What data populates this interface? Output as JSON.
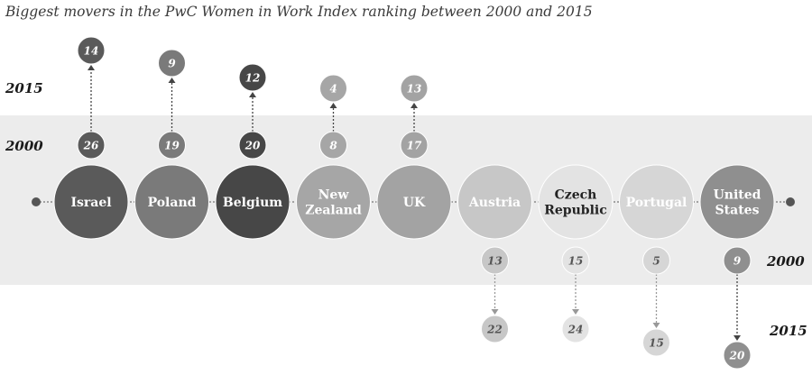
{
  "title": "Biggest movers in the PwC Women in Work Index ranking between 2000 and 2015",
  "year_labels": {
    "upper_2015": "2015",
    "upper_2000": "2000",
    "lower_2000": "2000",
    "lower_2015": "2015"
  },
  "chart_data": {
    "type": "bubble-movement",
    "title": "Biggest movers in the PwC Women in Work Index ranking between 2000 and 2015",
    "years": [
      "2000",
      "2015"
    ],
    "countries": [
      {
        "name": "Israel",
        "label_lines": [
          "Israel"
        ],
        "rank_2000": 26,
        "rank_2015": 14,
        "direction": "up",
        "color": "#5a5a5a"
      },
      {
        "name": "Poland",
        "label_lines": [
          "Poland"
        ],
        "rank_2000": 19,
        "rank_2015": 9,
        "direction": "up",
        "color": "#7a7a7a"
      },
      {
        "name": "Belgium",
        "label_lines": [
          "Belgium"
        ],
        "rank_2000": 20,
        "rank_2015": 12,
        "direction": "up",
        "color": "#474747"
      },
      {
        "name": "New Zealand",
        "label_lines": [
          "New",
          "Zealand"
        ],
        "rank_2000": 8,
        "rank_2015": 4,
        "direction": "up",
        "color": "#a6a6a6"
      },
      {
        "name": "UK",
        "label_lines": [
          "UK"
        ],
        "rank_2000": 17,
        "rank_2015": 13,
        "direction": "up",
        "color": "#a3a3a3"
      },
      {
        "name": "Austria",
        "label_lines": [
          "Austria"
        ],
        "rank_2000": 13,
        "rank_2015": 22,
        "direction": "down",
        "color": "#c7c7c7"
      },
      {
        "name": "Czech Republic",
        "label_lines": [
          "Czech",
          "Republic"
        ],
        "rank_2000": 15,
        "rank_2015": 24,
        "direction": "down",
        "color": "#e3e3e3"
      },
      {
        "name": "Portugal",
        "label_lines": [
          "Portugal"
        ],
        "rank_2000": 5,
        "rank_2015": 15,
        "direction": "down",
        "color": "#d6d6d6"
      },
      {
        "name": "United States",
        "label_lines": [
          "United",
          "States"
        ],
        "rank_2000": 9,
        "rank_2015": 20,
        "direction": "down",
        "color": "#8f8f8f"
      }
    ]
  }
}
